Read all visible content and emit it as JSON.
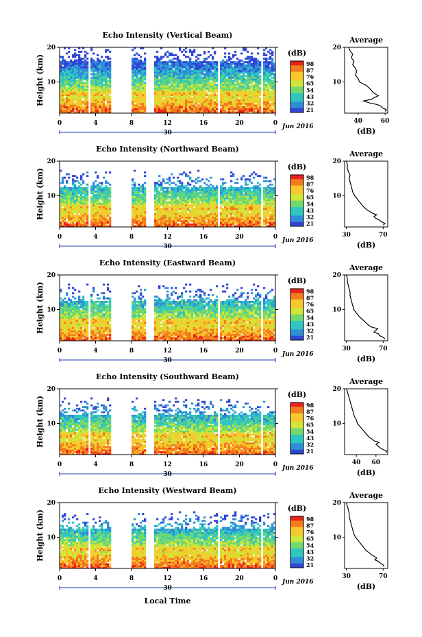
{
  "figure": {
    "xlabel": "Local Time",
    "colorbar_label": "(dB)",
    "colorbar_ticks": [
      "98",
      "87",
      "76",
      "65",
      "54",
      "43",
      "32",
      "21"
    ],
    "colorbar_colors": [
      "#e8221b",
      "#f47a1e",
      "#f7c82b",
      "#cfe63a",
      "#73d96b",
      "#2fc6c0",
      "#2f8ed8",
      "#3046d6"
    ],
    "inset_title": "Average",
    "inset_xlabel": "(dB)"
  },
  "chart_data": [
    {
      "type": "heatmap",
      "title": "Echo Intensity (Vertical Beam)",
      "ylabel": "Height (km)",
      "xticks": [
        "0",
        "4",
        "8",
        "12",
        "16",
        "20",
        "0"
      ],
      "date_label": "30",
      "month_label": "Jun 2016",
      "yticks": [
        "20",
        "10"
      ],
      "xlim": [
        0,
        24
      ],
      "ylim": [
        1,
        20
      ],
      "gaps": [
        [
          3.2,
          3.4
        ],
        [
          5.8,
          8.1
        ],
        [
          9.6,
          10.6
        ],
        [
          17.6,
          17.8
        ],
        [
          22.4,
          22.7
        ]
      ],
      "profile": {
        "xticks": [
          "40",
          "60"
        ],
        "xlim": [
          30,
          62
        ],
        "yticks": [
          "20",
          "10"
        ],
        "heights": [
          1.5,
          2,
          2.5,
          3,
          3.5,
          4,
          4.5,
          5,
          5.5,
          6,
          7,
          8,
          9,
          10,
          11,
          12,
          13,
          14,
          15,
          16,
          17,
          18,
          19,
          20
        ],
        "values": [
          60,
          61,
          58,
          57,
          54,
          48,
          44,
          50,
          52,
          55,
          51,
          49,
          46,
          41,
          40,
          38,
          39,
          38,
          36,
          37,
          35,
          36,
          34,
          33
        ]
      }
    },
    {
      "type": "heatmap",
      "title": "Echo Intensity (Northward Beam)",
      "ylabel": "Height (km)",
      "xticks": [
        "0",
        "4",
        "8",
        "12",
        "16",
        "20",
        "0"
      ],
      "date_label": "30",
      "month_label": "Jun 2016",
      "yticks": [
        "20",
        "10"
      ],
      "xlim": [
        0,
        24
      ],
      "ylim": [
        1,
        20
      ],
      "gaps": [
        [
          3.2,
          3.4
        ],
        [
          5.8,
          8.1
        ],
        [
          9.6,
          10.6
        ],
        [
          17.6,
          17.8
        ],
        [
          22.4,
          22.7
        ]
      ],
      "profile": {
        "xticks": [
          "30",
          "70"
        ],
        "xlim": [
          28,
          75
        ],
        "yticks": [
          "20",
          "10"
        ],
        "heights": [
          1.5,
          2,
          2.5,
          3,
          3.5,
          4,
          4.5,
          5,
          5.5,
          6,
          7,
          8,
          9,
          10,
          11,
          12,
          13,
          14,
          15,
          16,
          17,
          18,
          19,
          20
        ],
        "values": [
          70,
          72,
          68,
          66,
          62,
          60,
          63,
          58,
          55,
          52,
          48,
          45,
          42,
          39,
          37,
          36,
          35,
          34,
          33,
          34,
          32,
          31,
          31,
          30
        ]
      }
    },
    {
      "type": "heatmap",
      "title": "Echo Intensity (Eastward Beam)",
      "ylabel": "Height (km)",
      "xticks": [
        "0",
        "4",
        "8",
        "12",
        "16",
        "20",
        "0"
      ],
      "date_label": "30",
      "month_label": "Jun 2016",
      "yticks": [
        "20",
        "10"
      ],
      "xlim": [
        0,
        24
      ],
      "ylim": [
        1,
        20
      ],
      "gaps": [
        [
          3.2,
          3.4
        ],
        [
          5.8,
          8.1
        ],
        [
          9.6,
          10.6
        ],
        [
          17.6,
          17.8
        ],
        [
          22.4,
          22.7
        ]
      ],
      "profile": {
        "xticks": [
          "30",
          "70"
        ],
        "xlim": [
          28,
          75
        ],
        "yticks": [
          "20",
          "10"
        ],
        "heights": [
          1.5,
          2,
          2.5,
          3,
          3.5,
          4,
          4.5,
          5,
          5.5,
          6,
          7,
          8,
          9,
          10,
          11,
          12,
          13,
          14,
          15,
          16,
          17,
          18,
          19,
          20
        ],
        "values": [
          72,
          70,
          66,
          65,
          60,
          62,
          64,
          57,
          54,
          52,
          48,
          44,
          41,
          38,
          37,
          36,
          35,
          34,
          34,
          33,
          32,
          31,
          31,
          30
        ]
      }
    },
    {
      "type": "heatmap",
      "title": "Echo Intensity (Southward Beam)",
      "ylabel": "Height (km)",
      "xticks": [
        "0",
        "4",
        "8",
        "12",
        "16",
        "20",
        "0"
      ],
      "date_label": "30",
      "month_label": "Jun 2016",
      "yticks": [
        "20",
        "10"
      ],
      "xlim": [
        0,
        24
      ],
      "ylim": [
        1,
        20
      ],
      "gaps": [
        [
          3.2,
          3.4
        ],
        [
          5.8,
          8.1
        ],
        [
          9.6,
          10.6
        ],
        [
          17.6,
          17.8
        ],
        [
          22.4,
          22.7
        ]
      ],
      "profile": {
        "xticks": [
          "40",
          "60"
        ],
        "xlim": [
          28,
          72
        ],
        "yticks": [
          "20",
          "10"
        ],
        "heights": [
          1.5,
          2,
          2.5,
          3,
          3.5,
          4,
          4.5,
          5,
          5.5,
          6,
          7,
          8,
          9,
          10,
          11,
          12,
          13,
          14,
          15,
          16,
          17,
          18,
          19,
          20
        ],
        "values": [
          70,
          71,
          67,
          64,
          62,
          60,
          63,
          58,
          56,
          53,
          50,
          47,
          44,
          41,
          40,
          38,
          37,
          36,
          35,
          34,
          33,
          32,
          31,
          30
        ]
      }
    },
    {
      "type": "heatmap",
      "title": "Echo Intensity (Westward Beam)",
      "ylabel": "Height (km)",
      "xticks": [
        "0",
        "4",
        "8",
        "12",
        "16",
        "20",
        "0"
      ],
      "date_label": "30",
      "month_label": "Jun 2016",
      "yticks": [
        "20",
        "10"
      ],
      "xlim": [
        0,
        24
      ],
      "ylim": [
        1,
        20
      ],
      "gaps": [
        [
          3.2,
          3.4
        ],
        [
          5.8,
          8.1
        ],
        [
          9.6,
          10.6
        ],
        [
          17.6,
          17.8
        ],
        [
          22.4,
          22.7
        ]
      ],
      "profile": {
        "xticks": [
          "30",
          "70"
        ],
        "xlim": [
          28,
          75
        ],
        "yticks": [
          "20",
          "10"
        ],
        "heights": [
          1.5,
          2,
          2.5,
          3,
          3.5,
          4,
          4.5,
          5,
          5.5,
          6,
          7,
          8,
          9,
          10,
          11,
          12,
          13,
          14,
          15,
          16,
          17,
          18,
          19,
          20
        ],
        "values": [
          71,
          70,
          67,
          65,
          61,
          63,
          60,
          57,
          55,
          52,
          49,
          46,
          43,
          40,
          38,
          37,
          36,
          35,
          34,
          33,
          33,
          32,
          31,
          30
        ]
      }
    }
  ]
}
